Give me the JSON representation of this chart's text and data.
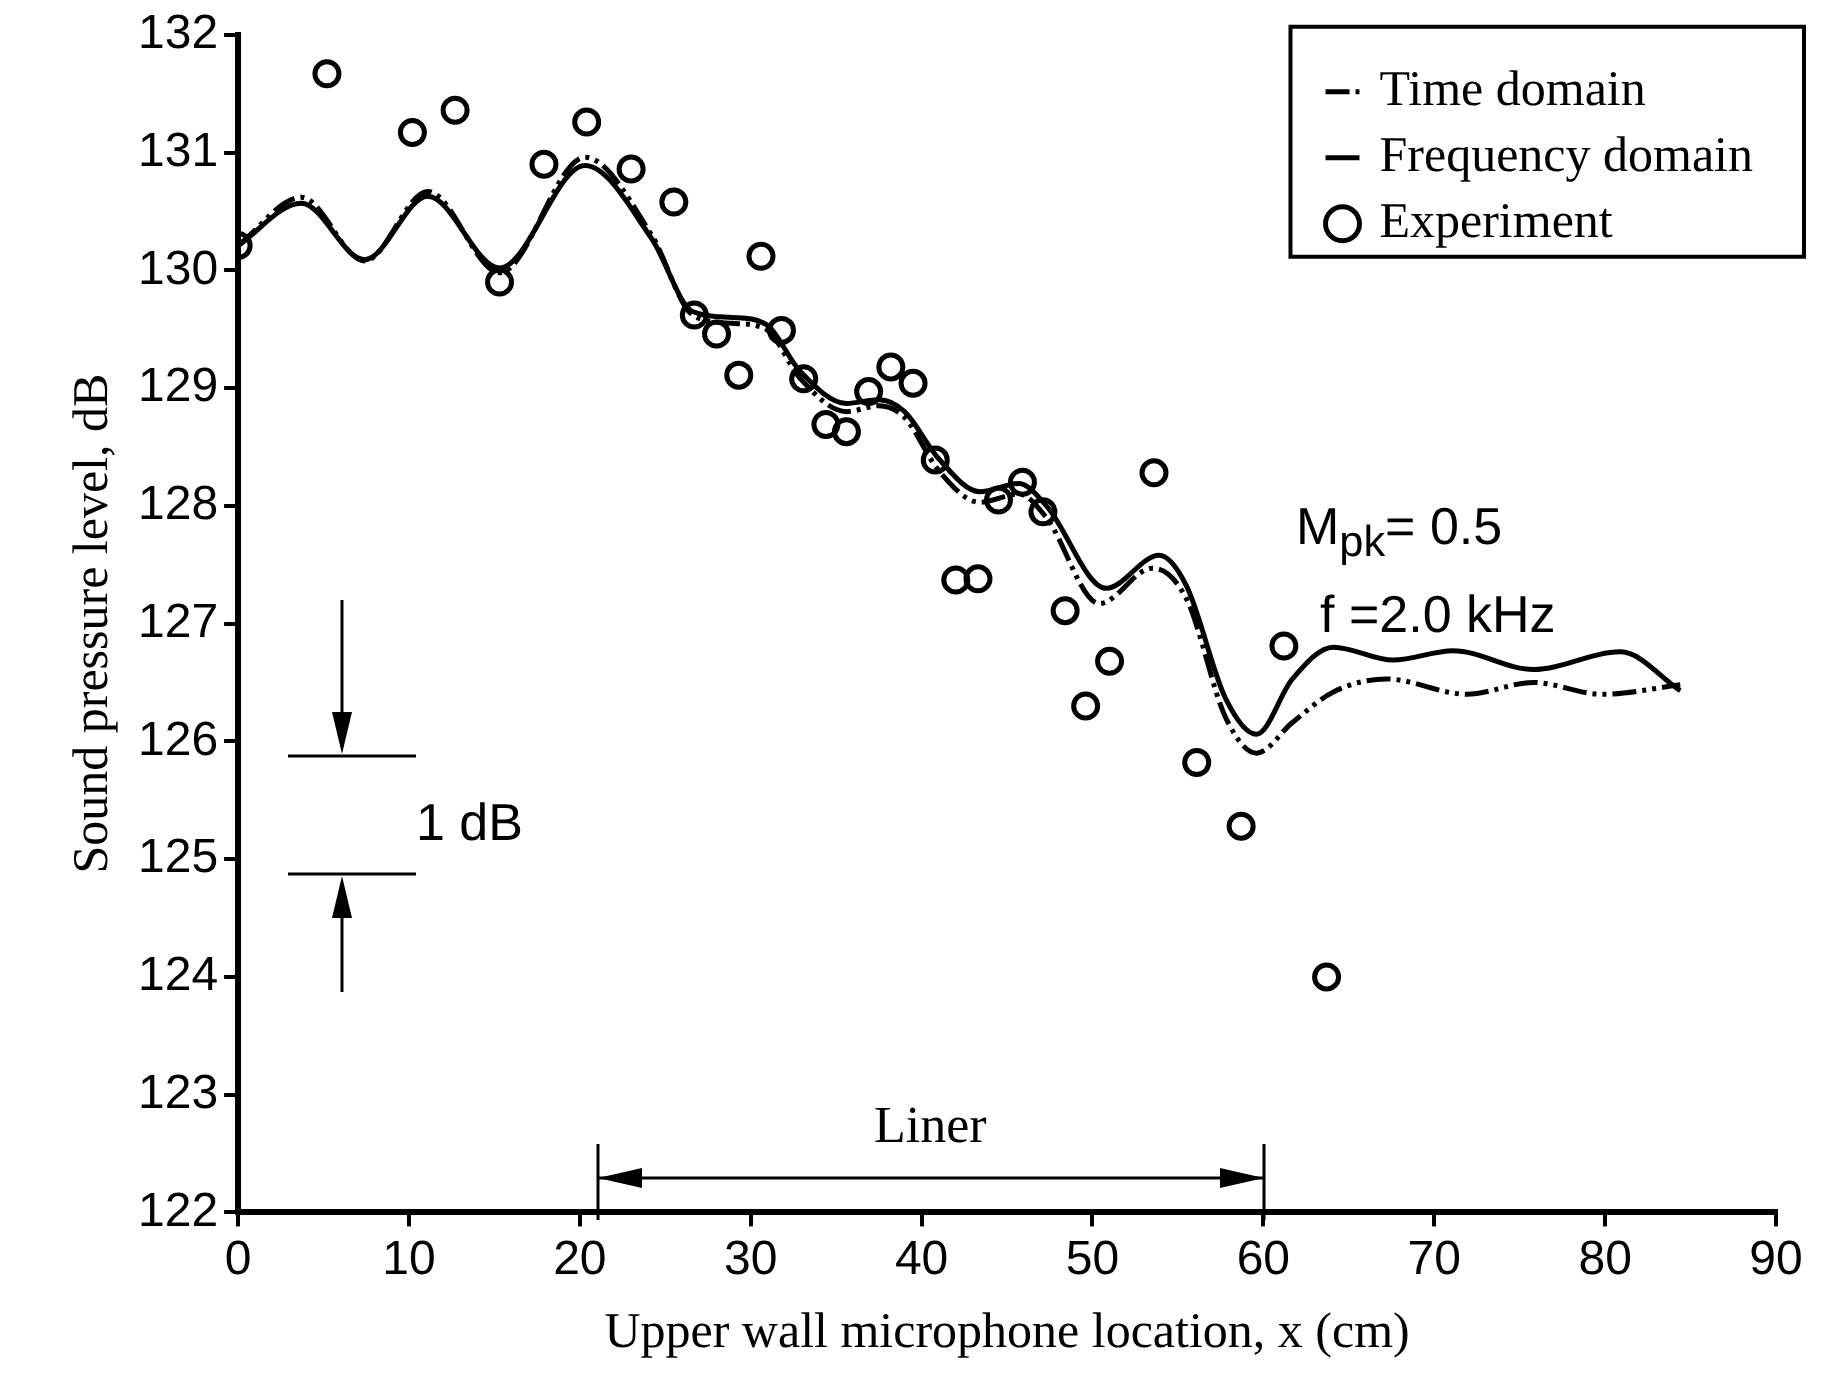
{
  "chart_data": {
    "type": "line",
    "xlabel": "Upper wall microphone location, x (cm)",
    "ylabel": "Sound pressure level, dB",
    "xlim": [
      0,
      90
    ],
    "xticks": [
      0,
      10,
      20,
      30,
      40,
      50,
      60,
      70,
      80,
      90
    ],
    "ylim": [
      122,
      132
    ],
    "yticks": [
      122,
      123,
      124,
      125,
      126,
      127,
      128,
      129,
      130,
      131,
      132
    ],
    "grid": false,
    "legend": "top right",
    "series": [
      {
        "name": "Time domain",
        "color": "#000000",
        "line_style": "dashed",
        "marker": "none",
        "x": [
          0,
          3.7,
          7.4,
          11.1,
          15.3,
          20.3,
          24.2,
          26.6,
          28.9,
          30.9,
          32.9,
          35.6,
          37.5,
          39.0,
          41.0,
          43.4,
          45.7,
          47.3,
          50.4,
          53.5,
          55.5,
          57.8,
          59.6,
          61.7,
          64.1,
          67.2,
          71.9,
          75.8,
          79.8,
          84.4
        ],
        "values": [
          130.21,
          130.62,
          130.08,
          130.67,
          129.98,
          130.96,
          130.3,
          129.62,
          129.55,
          129.5,
          129.08,
          128.8,
          128.85,
          128.75,
          128.3,
          128.03,
          128.1,
          127.9,
          127.17,
          127.47,
          127.21,
          126.2,
          125.9,
          126.16,
          126.42,
          126.53,
          126.4,
          126.5,
          126.4,
          126.48
        ]
      },
      {
        "name": "Frequency domain",
        "color": "#000000",
        "line_style": "solid",
        "marker": "none",
        "x": [
          0,
          3.7,
          7.4,
          11.1,
          15.3,
          20.3,
          24.2,
          26.6,
          28.9,
          30.9,
          32.9,
          35.6,
          37.5,
          39.0,
          41.0,
          43.4,
          45.7,
          47.3,
          50.8,
          53.9,
          55.5,
          57.8,
          59.6,
          61.7,
          64.1,
          67.6,
          71.1,
          75.8,
          80.9,
          84.4
        ],
        "values": [
          130.21,
          130.57,
          130.09,
          130.63,
          130.02,
          130.89,
          130.27,
          129.65,
          129.6,
          129.54,
          129.14,
          128.87,
          128.9,
          128.8,
          128.4,
          128.12,
          128.19,
          128.0,
          127.3,
          127.58,
          127.32,
          126.36,
          126.06,
          126.53,
          126.8,
          126.69,
          126.77,
          126.61,
          126.76,
          126.43
        ]
      },
      {
        "name": "Experiment",
        "type": "scatter",
        "color": "#000000",
        "marker": "circle",
        "x": [
          0,
          5.2,
          10.2,
          12.7,
          15.3,
          17.9,
          20.4,
          23.0,
          25.5,
          26.7,
          28.0,
          29.3,
          30.6,
          31.8,
          33.1,
          34.4,
          35.6,
          36.9,
          38.2,
          39.5,
          40.8,
          42.0,
          43.3,
          44.5,
          45.9,
          47.1,
          48.4,
          49.6,
          51.0,
          53.6,
          56.1,
          58.7,
          61.2,
          63.7
        ],
        "values": [
          130.21,
          131.67,
          131.17,
          131.36,
          129.9,
          130.9,
          131.26,
          130.86,
          130.58,
          129.62,
          129.46,
          129.11,
          130.12,
          129.49,
          129.08,
          128.69,
          128.63,
          128.97,
          129.18,
          129.04,
          128.39,
          127.37,
          127.38,
          128.05,
          128.2,
          127.95,
          127.11,
          126.3,
          126.68,
          128.28,
          125.82,
          125.28,
          126.81,
          124.0
        ]
      }
    ],
    "annotations": [
      "M$_{pk}$= 0.5",
      "f =2.0 kHz",
      "1 dB",
      "Liner"
    ]
  }
}
